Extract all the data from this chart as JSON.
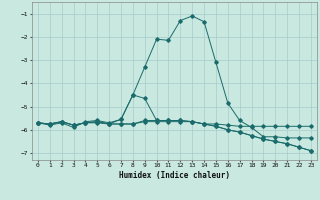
{
  "x": [
    0,
    1,
    2,
    3,
    4,
    5,
    6,
    7,
    8,
    9,
    10,
    11,
    12,
    13,
    14,
    15,
    16,
    17,
    18,
    19,
    20,
    21,
    22,
    23
  ],
  "line_main": [
    -5.7,
    -5.8,
    -5.7,
    -5.9,
    -5.65,
    -5.6,
    -5.7,
    -5.55,
    -4.5,
    -3.3,
    -2.1,
    -2.15,
    -1.3,
    -1.1,
    -1.35,
    -3.1,
    -4.85,
    -5.6,
    -5.9,
    -6.3,
    -6.3,
    -6.35,
    -6.35,
    -6.35
  ],
  "line_flat1": [
    -5.7,
    -5.75,
    -5.65,
    -5.8,
    -5.7,
    -5.7,
    -5.75,
    -5.75,
    -5.75,
    -5.65,
    -5.65,
    -5.65,
    -5.65,
    -5.65,
    -5.75,
    -5.75,
    -5.8,
    -5.85,
    -5.85,
    -5.85,
    -5.85,
    -5.85,
    -5.85,
    -5.85
  ],
  "line_flat2": [
    -5.7,
    -5.75,
    -5.65,
    -5.8,
    -5.7,
    -5.65,
    -5.75,
    -5.75,
    -5.75,
    -5.6,
    -5.6,
    -5.6,
    -5.6,
    -5.65,
    -5.75,
    -5.85,
    -6.0,
    -6.1,
    -6.25,
    -6.4,
    -6.5,
    -6.6,
    -6.75,
    -6.9
  ],
  "line_bump": [
    -5.7,
    -5.75,
    -5.65,
    -5.8,
    -5.7,
    -5.65,
    -5.75,
    -5.55,
    -4.5,
    -4.65,
    -5.6,
    -5.6,
    -5.6,
    -5.65,
    -5.75,
    -5.85,
    -6.0,
    -6.1,
    -6.25,
    -6.4,
    -6.5,
    -6.6,
    -6.75,
    -6.9
  ],
  "bg_color": "#c8e8e0",
  "grid_color": "#a8cccc",
  "line_color": "#1a6b6b",
  "xlabel": "Humidex (Indice chaleur)",
  "ylim_min": -7.3,
  "ylim_max": -0.5,
  "xlim_min": -0.5,
  "xlim_max": 23.5
}
